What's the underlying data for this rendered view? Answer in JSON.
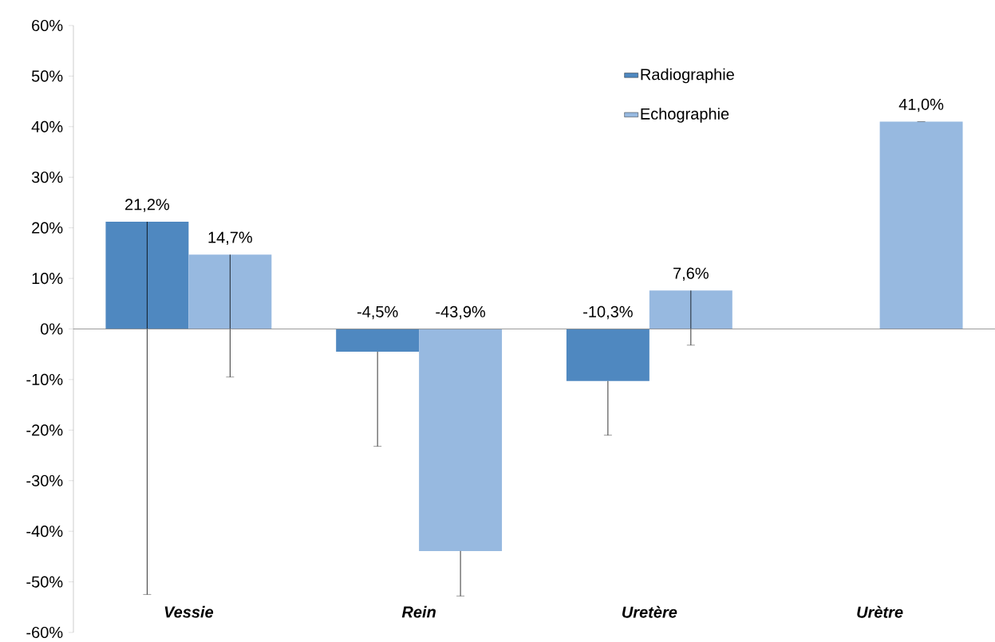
{
  "chart_data": {
    "type": "bar",
    "categories": [
      "Vessie",
      "Rein",
      "Uretère",
      "Urètre"
    ],
    "series": [
      {
        "name": "Radiographie",
        "color": "#4f88c0",
        "values": [
          21.2,
          -4.5,
          -10.3,
          null
        ],
        "value_labels": [
          "21,2%",
          "-4,5%",
          "-10,3%",
          null
        ],
        "errors": [
          [
            -52.5,
            21.2
          ],
          [
            -23.2,
            -4.5
          ],
          [
            -21.0,
            -10.3
          ],
          null
        ]
      },
      {
        "name": "Echographie",
        "color": "#97b9e0",
        "values": [
          14.7,
          -43.9,
          7.6,
          41.0
        ],
        "value_labels": [
          "14,7%",
          "-43,9%",
          "7,6%",
          "41,0%"
        ],
        "errors": [
          [
            -9.5,
            14.7
          ],
          [
            -52.8,
            -43.9
          ],
          [
            -3.2,
            7.6
          ],
          [
            41.0,
            41.0
          ]
        ]
      }
    ],
    "ylim": [
      -60,
      60
    ],
    "yticks": [
      {
        "value": -60,
        "label": "-60%"
      },
      {
        "value": -50,
        "label": "-50%"
      },
      {
        "value": -40,
        "label": "-40%"
      },
      {
        "value": -30,
        "label": "-30%"
      },
      {
        "value": -20,
        "label": "-20%"
      },
      {
        "value": -10,
        "label": "-10%"
      },
      {
        "value": 0,
        "label": "0%"
      },
      {
        "value": 10,
        "label": "10%"
      },
      {
        "value": 20,
        "label": "20%"
      },
      {
        "value": 30,
        "label": "30%"
      },
      {
        "value": 40,
        "label": "40%"
      },
      {
        "value": 50,
        "label": "50%"
      },
      {
        "value": 60,
        "label": "60%"
      }
    ],
    "legend": "top right"
  }
}
